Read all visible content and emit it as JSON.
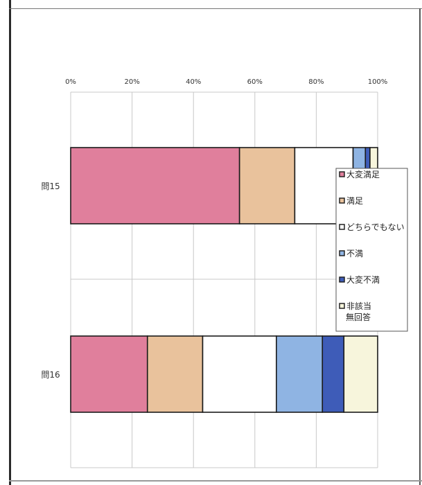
{
  "chart_data": {
    "type": "bar",
    "orientation": "horizontal",
    "stacked": "percent",
    "categories": [
      "問15",
      "問16"
    ],
    "series": [
      {
        "name": "大変満足",
        "values": [
          55,
          25
        ],
        "color": "#e07f9c"
      },
      {
        "name": "満足",
        "values": [
          18,
          18
        ],
        "color": "#e9c29c"
      },
      {
        "name": "どちらでもない",
        "values": [
          19,
          24
        ],
        "color": "#ffffff"
      },
      {
        "name": "不満",
        "values": [
          4,
          15
        ],
        "color": "#8fb4e3"
      },
      {
        "name": "大変不満",
        "values": [
          1.5,
          7
        ],
        "color": "#3e5cb8"
      },
      {
        "name": "非該当\n無回答",
        "values": [
          2.5,
          11
        ],
        "color": "#f7f5dc"
      }
    ],
    "xaxis": {
      "ticks": [
        "0%",
        "20%",
        "40%",
        "60%",
        "80%",
        "100%"
      ],
      "range": [
        0,
        100
      ]
    },
    "grid": true,
    "legend_position": "right"
  }
}
